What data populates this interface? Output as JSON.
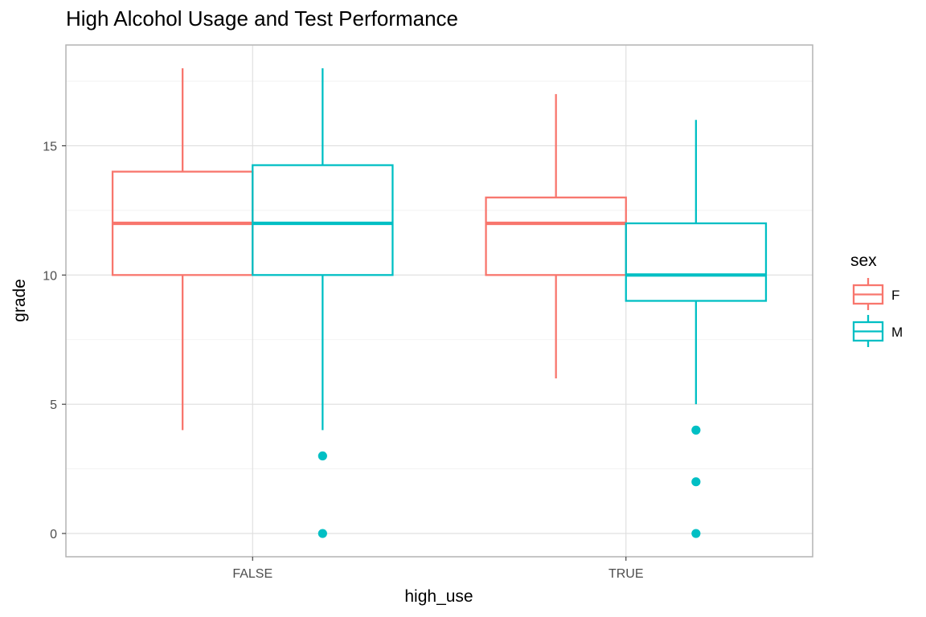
{
  "chart_data": {
    "type": "boxplot",
    "title": "High Alcohol Usage and Test Performance",
    "xlabel": "high_use",
    "ylabel": "grade",
    "categories": [
      "FALSE",
      "TRUE"
    ],
    "ylim": [
      -0.9,
      18.9
    ],
    "yticks": [
      0,
      5,
      10,
      15
    ],
    "grid": true,
    "legend": {
      "title": "sex",
      "position": "right",
      "entries": [
        "F",
        "M"
      ]
    },
    "series": [
      {
        "name": "F",
        "color": "#F8766D",
        "boxes": [
          {
            "category": "FALSE",
            "whisker_low": 4,
            "q1": 10,
            "median": 12,
            "q3": 14,
            "whisker_high": 18,
            "outliers": []
          },
          {
            "category": "TRUE",
            "whisker_low": 6,
            "q1": 10,
            "median": 12,
            "q3": 13,
            "whisker_high": 17,
            "outliers": []
          }
        ]
      },
      {
        "name": "M",
        "color": "#00BFC4",
        "boxes": [
          {
            "category": "FALSE",
            "whisker_low": 4,
            "q1": 10,
            "median": 12,
            "q3": 14.25,
            "whisker_high": 18,
            "outliers": [
              3,
              0
            ]
          },
          {
            "category": "TRUE",
            "whisker_low": 5,
            "q1": 9,
            "median": 10,
            "q3": 12,
            "whisker_high": 16,
            "outliers": [
              4,
              2,
              0
            ]
          }
        ]
      }
    ]
  }
}
